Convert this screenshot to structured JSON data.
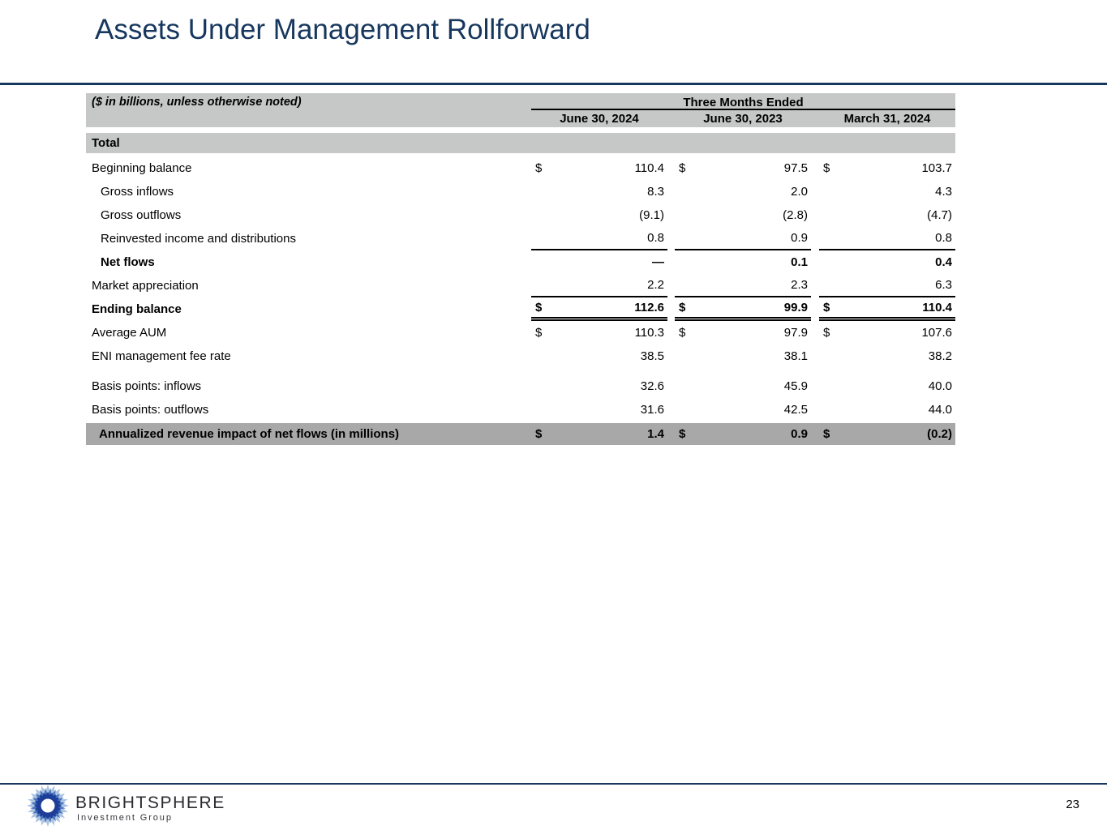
{
  "theme": {
    "navy": "#17375e",
    "band_gray": "#c6c8c8",
    "highlight_gray": "#a8a8a8",
    "logo_light_blue": "#a9c3e2",
    "logo_mid_blue": "#3f6ab5",
    "logo_dark_blue": "#1c3e99"
  },
  "title": "Assets Under Management Rollforward",
  "table": {
    "note": "($ in billions, unless otherwise noted)",
    "span_header": "Three Months Ended",
    "columns": [
      "June 30, 2024",
      "June 30, 2023",
      "March 31, 2024"
    ],
    "section_label": "Total",
    "currency_symbol": "$",
    "rows": [
      {
        "label": "Beginning balance",
        "values": [
          "110.4",
          "97.5",
          "103.7"
        ]
      },
      {
        "label": "Gross inflows",
        "values": [
          "8.3",
          "2.0",
          "4.3"
        ]
      },
      {
        "label": "Gross outflows",
        "values": [
          "(9.1)",
          "(2.8)",
          "(4.7)"
        ]
      },
      {
        "label": "Reinvested income and distributions",
        "values": [
          "0.8",
          "0.9",
          "0.8"
        ]
      },
      {
        "label": "Net flows",
        "values": [
          "—",
          "0.1",
          "0.4"
        ]
      },
      {
        "label": "Market appreciation",
        "values": [
          "2.2",
          "2.3",
          "6.3"
        ]
      },
      {
        "label": "Ending balance",
        "values": [
          "112.6",
          "99.9",
          "110.4"
        ]
      },
      {
        "label": "Average AUM",
        "values": [
          "110.3",
          "97.9",
          "107.6"
        ]
      },
      {
        "label": "ENI management fee rate",
        "values": [
          "38.5",
          "38.1",
          "38.2"
        ]
      },
      {
        "label": "Basis points: inflows",
        "values": [
          "32.6",
          "45.9",
          "40.0"
        ]
      },
      {
        "label": "Basis points: outflows",
        "values": [
          "31.6",
          "42.5",
          "44.0"
        ]
      },
      {
        "label": "Annualized revenue impact of net flows (in millions)",
        "values": [
          "1.4",
          "0.9",
          "(0.2)"
        ]
      }
    ]
  },
  "footer": {
    "brand": "BRIGHTSPHERE",
    "brand_sub": "Investment Group",
    "page_number": "23"
  }
}
